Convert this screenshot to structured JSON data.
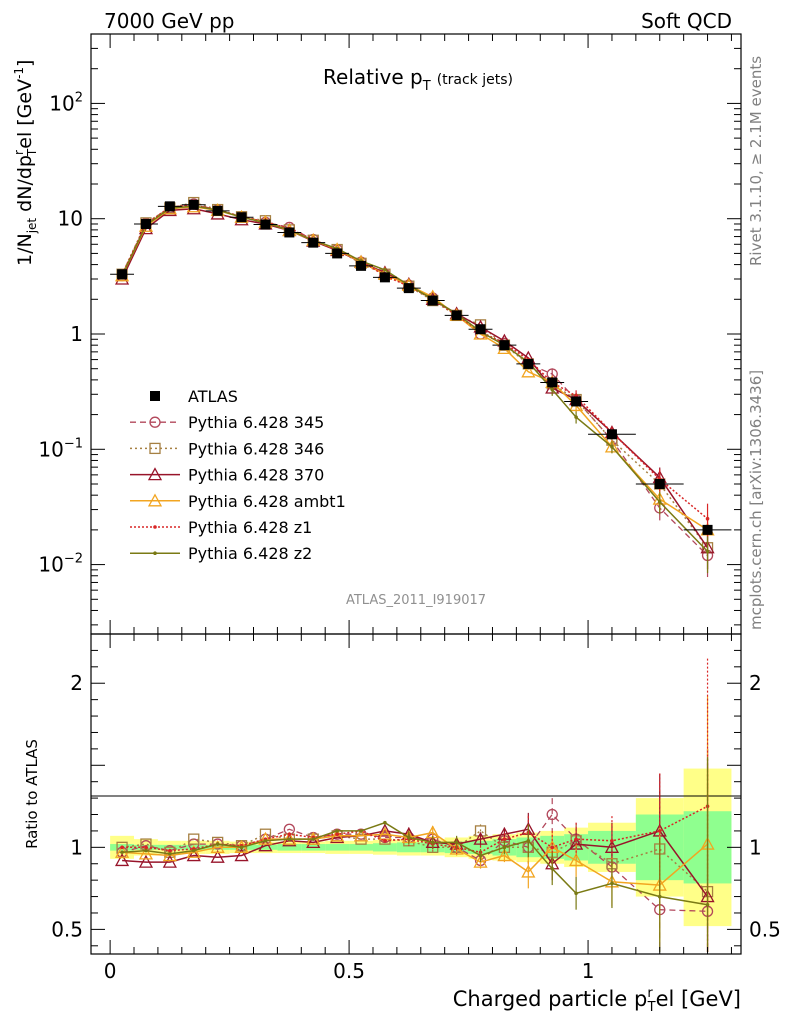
{
  "header": {
    "left": "7000 GeV pp",
    "right": "Soft QCD"
  },
  "side_text": {
    "rivet": "Rivet 3.1.10, ≥ 2.1M events",
    "mcplots": "mcplots.cern.ch [arXiv:1306.3436]"
  },
  "analysis_id": "ATLAS_2011_I919017",
  "colors": {
    "ATLAS": "#000000",
    "p345": "#b2475b",
    "p346": "#a68042",
    "p370": "#98142a",
    "ambt1": "#f2a521",
    "z1": "#d92626",
    "z2": "#7a7a14",
    "band_inner": "#8fff8f",
    "band_outer": "#ffff88"
  },
  "chart_data": [
    {
      "type": "line",
      "title_main": "Relative p",
      "title_sub": "T",
      "title_suffix": "(track jets)",
      "ylabel_parts": {
        "a": "1/N",
        "a_sub": "jet",
        "b": " dN/dp",
        "b_sup": "r",
        "b_sub": "T",
        "c": "el [GeV",
        "c_sup": "-1",
        "d": "]"
      },
      "yscale": "log",
      "ylim": [
        0.0025,
        400
      ],
      "xlim": [
        -0.04,
        1.32
      ],
      "yticks": [
        {
          "value": 0.01,
          "base": "10",
          "exp": "−2"
        },
        {
          "value": 0.1,
          "base": "10",
          "exp": "−1"
        },
        {
          "value": 1,
          "base": "1",
          "exp": ""
        },
        {
          "value": 10,
          "base": "10",
          "exp": ""
        },
        {
          "value": 100,
          "base": "10",
          "exp": "2"
        }
      ],
      "x": [
        0.025,
        0.075,
        0.125,
        0.175,
        0.225,
        0.275,
        0.325,
        0.375,
        0.425,
        0.475,
        0.525,
        0.575,
        0.625,
        0.675,
        0.725,
        0.775,
        0.825,
        0.875,
        0.925,
        0.975,
        1.05,
        1.15,
        1.25
      ],
      "x_err": [
        0.025,
        0.025,
        0.025,
        0.025,
        0.025,
        0.025,
        0.025,
        0.025,
        0.025,
        0.025,
        0.025,
        0.025,
        0.025,
        0.025,
        0.025,
        0.025,
        0.025,
        0.025,
        0.025,
        0.025,
        0.05,
        0.05,
        0.05
      ],
      "series": [
        {
          "name": "ATLAS",
          "key": "ATLAS",
          "style": "data",
          "values": [
            3.3,
            9.0,
            12.8,
            13.2,
            11.7,
            10.3,
            8.9,
            7.6,
            6.2,
            5.0,
            3.9,
            3.1,
            2.5,
            1.95,
            1.45,
            1.1,
            0.8,
            0.55,
            0.38,
            0.26,
            0.135,
            0.05,
            0.02
          ]
        },
        {
          "name": "Pythia 6.428 345",
          "key": "p345",
          "style": "circle",
          "dash": "6,4",
          "width": 1.3,
          "values": [
            3.2,
            9.1,
            12.5,
            13.4,
            11.9,
            10.4,
            9.3,
            8.4,
            6.6,
            5.4,
            4.2,
            3.3,
            2.65,
            2.05,
            1.45,
            1.0,
            0.83,
            0.55,
            0.45,
            0.27,
            0.12,
            0.031,
            0.012
          ]
        },
        {
          "name": "Pythia 6.428 346",
          "key": "p346",
          "style": "square",
          "dash": "2,3",
          "width": 1.5,
          "values": [
            3.3,
            9.2,
            12.4,
            13.8,
            12.0,
            10.4,
            9.6,
            8.0,
            6.5,
            5.4,
            4.1,
            3.3,
            2.6,
            1.95,
            1.45,
            1.2,
            0.8,
            0.55,
            0.37,
            0.27,
            0.12,
            0.05,
            0.014
          ]
        },
        {
          "name": "Pythia 6.428 370",
          "key": "p370",
          "style": "triangle",
          "dash": "",
          "width": 1.5,
          "values": [
            3.0,
            8.2,
            11.8,
            12.2,
            11.0,
            9.8,
            9.0,
            7.9,
            6.4,
            5.3,
            4.2,
            3.4,
            2.7,
            2.0,
            1.5,
            1.15,
            0.87,
            0.62,
            0.34,
            0.27,
            0.14,
            0.057,
            0.014
          ]
        },
        {
          "name": "Pythia 6.428 ambt1",
          "key": "ambt1",
          "style": "triangle",
          "dash": "",
          "width": 1.5,
          "values": [
            3.2,
            8.6,
            12.2,
            12.7,
            11.8,
            10.3,
            9.3,
            7.9,
            6.5,
            5.4,
            4.2,
            3.3,
            2.65,
            2.1,
            1.45,
            1.0,
            0.75,
            0.47,
            0.38,
            0.24,
            0.105,
            0.037,
            0.02
          ]
        },
        {
          "name": "Pythia 6.428 z1",
          "key": "z1",
          "style": "dot",
          "dash": "2,2",
          "width": 1.5,
          "values": [
            3.3,
            9.0,
            12.6,
            13.1,
            12.0,
            10.4,
            9.4,
            8.2,
            6.6,
            5.4,
            4.3,
            3.2,
            2.6,
            2.0,
            1.45,
            1.05,
            0.83,
            0.6,
            0.38,
            0.29,
            0.14,
            0.055,
            0.025
          ]
        },
        {
          "name": "Pythia 6.428 z2",
          "key": "z2",
          "style": "dot",
          "dash": "",
          "width": 1.5,
          "values": [
            3.2,
            8.8,
            12.3,
            12.9,
            11.9,
            10.3,
            9.2,
            8.0,
            6.5,
            5.5,
            4.3,
            3.6,
            2.65,
            2.0,
            1.5,
            1.05,
            0.8,
            0.57,
            0.33,
            0.19,
            0.105,
            0.035,
            0.013
          ]
        }
      ]
    },
    {
      "type": "line",
      "ylabel": "Ratio to ATLAS",
      "xlabel": "Charged particle p",
      "xlabel_sub": "T",
      "xlabel_sup": "r",
      "xlabel_suffix": "el [GeV]",
      "ylim": [
        0.35,
        2.3
      ],
      "xlim": [
        -0.04,
        1.32
      ],
      "yticks": [
        0.5,
        1,
        2
      ],
      "ytick_labels": [
        "0.5",
        "1",
        "2"
      ],
      "xticks": [
        0,
        0.5,
        1
      ],
      "xtick_labels": [
        "0",
        "0.5",
        "1"
      ],
      "band_inner": [
        0.02,
        0.015,
        0.015,
        0.015,
        0.015,
        0.015,
        0.015,
        0.02,
        0.02,
        0.02,
        0.02,
        0.025,
        0.03,
        0.03,
        0.035,
        0.04,
        0.05,
        0.06,
        0.07,
        0.08,
        0.1,
        0.2,
        0.22
      ],
      "band_outer": [
        0.07,
        0.05,
        0.04,
        0.04,
        0.04,
        0.035,
        0.035,
        0.035,
        0.035,
        0.04,
        0.04,
        0.045,
        0.05,
        0.05,
        0.06,
        0.07,
        0.08,
        0.09,
        0.1,
        0.12,
        0.15,
        0.3,
        0.48
      ],
      "series": [
        {
          "key": "p345",
          "style": "circle",
          "dash": "6,4",
          "width": 1.3,
          "values": [
            0.97,
            1.01,
            0.98,
            1.02,
            1.02,
            1.01,
            1.05,
            1.11,
            1.06,
            1.08,
            1.08,
            1.06,
            1.06,
            1.05,
            1.0,
            0.92,
            1.04,
            1.0,
            1.2,
            1.05,
            0.88,
            0.62,
            0.61
          ]
        },
        {
          "key": "p346",
          "style": "square",
          "dash": "2,3",
          "width": 1.5,
          "values": [
            1.0,
            1.02,
            0.97,
            1.05,
            1.03,
            1.01,
            1.08,
            1.05,
            1.05,
            1.07,
            1.05,
            1.05,
            1.04,
            1.0,
            1.0,
            1.1,
            1.0,
            1.0,
            0.97,
            1.04,
            0.9,
            0.99,
            0.73
          ]
        },
        {
          "key": "p370",
          "style": "triangle",
          "dash": "",
          "width": 1.5,
          "values": [
            0.92,
            0.91,
            0.91,
            0.95,
            0.94,
            0.95,
            1.01,
            1.04,
            1.03,
            1.06,
            1.07,
            1.1,
            1.08,
            1.03,
            1.02,
            1.05,
            1.08,
            1.11,
            0.9,
            1.02,
            1.0,
            1.1,
            0.7
          ]
        },
        {
          "key": "ambt1",
          "style": "triangle",
          "dash": "",
          "width": 1.5,
          "values": [
            0.97,
            0.96,
            0.95,
            0.97,
            1.0,
            1.0,
            1.05,
            1.05,
            1.05,
            1.07,
            1.07,
            1.08,
            1.06,
            1.09,
            0.99,
            0.91,
            0.95,
            0.85,
            1.0,
            0.92,
            0.79,
            0.77,
            1.02
          ]
        },
        {
          "key": "z1",
          "style": "dot",
          "dash": "2,2",
          "width": 1.5,
          "values": [
            1.0,
            1.0,
            0.98,
            0.99,
            1.02,
            1.01,
            1.05,
            1.08,
            1.06,
            1.08,
            1.1,
            1.04,
            1.05,
            1.02,
            1.0,
            0.97,
            1.05,
            1.09,
            1.0,
            1.05,
            1.04,
            1.1,
            1.25
          ]
        },
        {
          "key": "z2",
          "style": "dot",
          "dash": "",
          "width": 1.5,
          "values": [
            0.97,
            0.98,
            0.96,
            0.98,
            1.02,
            1.0,
            1.04,
            1.05,
            1.05,
            1.1,
            1.1,
            1.15,
            1.06,
            1.03,
            1.03,
            0.95,
            1.0,
            1.04,
            0.87,
            0.72,
            0.78,
            0.7,
            0.65
          ]
        }
      ]
    }
  ]
}
